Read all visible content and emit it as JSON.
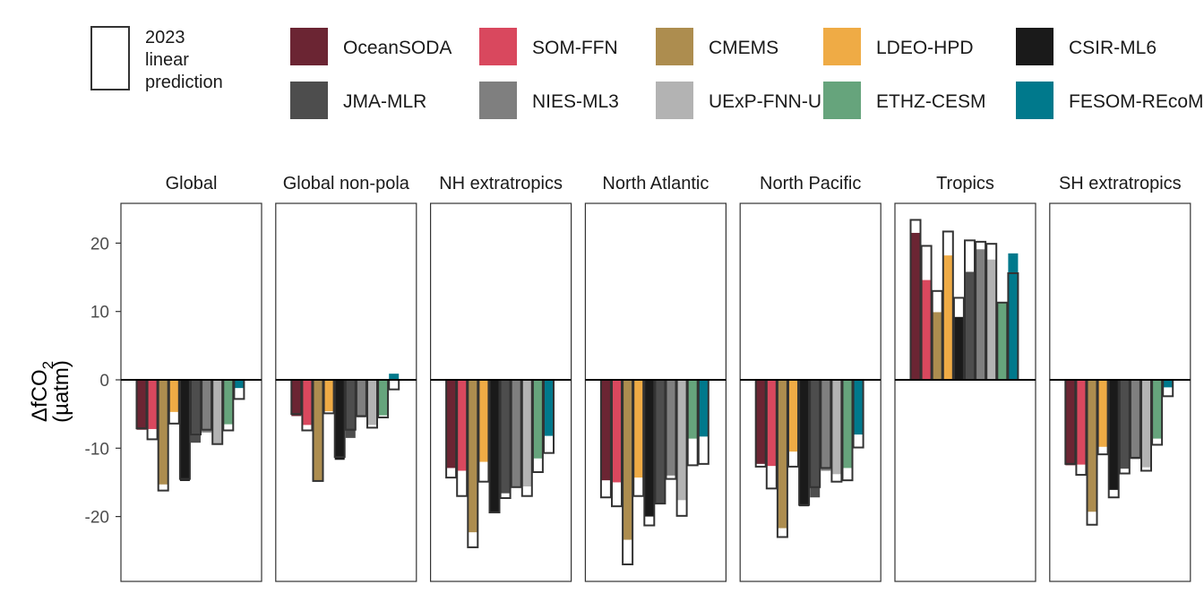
{
  "legend": {
    "box_label": "2023 linear prediction",
    "box_label_lines": [
      "2023",
      "linear",
      "prediction"
    ]
  },
  "chart_data": {
    "type": "bar",
    "ylabel": "ΔfCO2",
    "ylabel_main": "ΔfCO",
    "ylabel_sub": "2",
    "ylabel_unit": "(µatm)",
    "ylim": [
      -29.5,
      25.8
    ],
    "yticks": [
      20,
      10,
      0,
      -10,
      -20
    ],
    "ytick_labels": [
      "20",
      "10",
      "0",
      "-10",
      "-20"
    ],
    "grid": false,
    "legend_position": "top",
    "facets": [
      "Global",
      "Global non-pola",
      "NH extratropics",
      "North Atlantic",
      "North Pacific",
      "Tropics",
      "SH extratropics"
    ],
    "products": [
      {
        "name": "OceanSODA",
        "color": "#6b2533"
      },
      {
        "name": "SOM-FFN",
        "color": "#d9485e"
      },
      {
        "name": "CMEMS",
        "color": "#ad8d4f"
      },
      {
        "name": "LDEO-HPD",
        "color": "#efab45"
      },
      {
        "name": "CSIR-ML6",
        "color": "#1a1a1a"
      },
      {
        "name": "JMA-MLR",
        "color": "#4d4d4d"
      },
      {
        "name": "NIES-ML3",
        "color": "#7f7f7f"
      },
      {
        "name": "UExP-FNN-U",
        "color": "#b3b3b3"
      },
      {
        "name": "ETHZ-CESM",
        "color": "#66a47c"
      },
      {
        "name": "FESOM-REcoM",
        "color": "#00798c"
      }
    ],
    "series_2023_anomaly": [
      {
        "facet": "Global",
        "values": [
          -7.3,
          -7.2,
          -15.3,
          -4.7,
          -14.8,
          -9.2,
          -7.7,
          -9.5,
          -6.5,
          -1.2
        ]
      },
      {
        "facet": "Global non-pola",
        "values": [
          -5.3,
          -6.6,
          -14.8,
          -4.6,
          -11.7,
          -8.5,
          -5.5,
          -6.6,
          -5.2,
          0.9
        ]
      },
      {
        "facet": "NH extratropics",
        "values": [
          -12.9,
          -13.3,
          -22.3,
          -12.0,
          -19.5,
          -16.6,
          -15.6,
          -15.6,
          -11.5,
          -8.2
        ]
      },
      {
        "facet": "North Atlantic",
        "values": [
          -14.7,
          -15.0,
          -23.4,
          -14.3,
          -20.0,
          -18.2,
          -14.0,
          -17.6,
          -8.6,
          -8.3
        ]
      },
      {
        "facet": "North Pacific",
        "values": [
          -12.3,
          -12.6,
          -21.7,
          -10.5,
          -18.5,
          -17.2,
          -13.3,
          -13.8,
          -12.9,
          -8.0
        ]
      },
      {
        "facet": "Tropics",
        "values": [
          21.5,
          14.6,
          9.9,
          18.2,
          9.2,
          15.8,
          19.1,
          17.6,
          11.3,
          18.5
        ]
      },
      {
        "facet": "SH extratropics",
        "values": [
          -12.5,
          -12.4,
          -19.3,
          -9.8,
          -16.1,
          -13.0,
          -11.6,
          -12.8,
          -8.6,
          -1.1
        ]
      }
    ],
    "series_linear_prediction": [
      {
        "facet": "Global",
        "values": [
          -7.1,
          -8.7,
          -16.2,
          -6.4,
          -14.5,
          -8.0,
          -7.3,
          -9.4,
          -7.4,
          -2.8
        ]
      },
      {
        "facet": "Global non-pola",
        "values": [
          -5.0,
          -7.4,
          -14.8,
          -4.9,
          -11.3,
          -7.3,
          -5.3,
          -7.0,
          -5.5,
          -1.4
        ]
      },
      {
        "facet": "NH extratropics",
        "values": [
          -14.3,
          -17.0,
          -24.5,
          -14.9,
          -19.4,
          -17.3,
          -15.7,
          -17.0,
          -13.5,
          -10.7
        ]
      },
      {
        "facet": "North Atlantic",
        "values": [
          -17.2,
          -18.5,
          -27.0,
          -17.0,
          -21.3,
          -18.1,
          -14.5,
          -19.9,
          -12.5,
          -12.3
        ]
      },
      {
        "facet": "North Pacific",
        "values": [
          -12.7,
          -15.9,
          -23.0,
          -12.7,
          -18.3,
          -15.7,
          -12.9,
          -14.9,
          -14.7,
          -9.9
        ]
      },
      {
        "facet": "Tropics",
        "values": [
          23.4,
          19.6,
          13.0,
          21.7,
          12.0,
          20.4,
          20.2,
          19.9,
          11.3,
          15.6
        ]
      },
      {
        "facet": "SH extratropics",
        "values": [
          -12.3,
          -13.9,
          -21.2,
          -10.9,
          -17.2,
          -13.7,
          -11.4,
          -13.3,
          -9.5,
          -2.4
        ]
      }
    ]
  }
}
